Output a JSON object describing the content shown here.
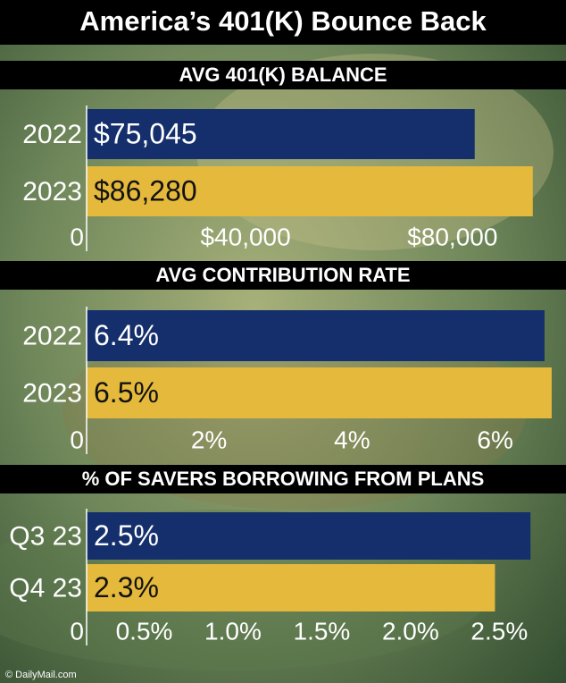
{
  "title": "America’s 401(K) Bounce Back",
  "credit": "© DailyMail.com",
  "chart_data": [
    {
      "type": "bar",
      "orientation": "horizontal",
      "title": "AVG 401(K) BALANCE",
      "categories": [
        "2022",
        "2023"
      ],
      "values": [
        75045,
        86280
      ],
      "value_labels": [
        "$75,045",
        "$86,280"
      ],
      "colors": [
        "#142f6b",
        "#e5b93c"
      ],
      "xlim": [
        0,
        92700
      ],
      "xticks": [
        0,
        {
          "value": 40000,
          "label": "$40,000"
        },
        {
          "value": 80000,
          "label": "$80,000"
        }
      ]
    },
    {
      "type": "bar",
      "orientation": "horizontal",
      "title": "AVG CONTRIBUTION RATE",
      "categories": [
        "2022",
        "2023"
      ],
      "values": [
        6.4,
        6.5
      ],
      "value_labels": [
        "6.4%",
        "6.5%"
      ],
      "colors": [
        "#142f6b",
        "#e5b93c"
      ],
      "xlim": [
        0,
        6.7
      ],
      "xticks": [
        0,
        {
          "value": 2,
          "label": "2%"
        },
        {
          "value": 4,
          "label": "4%"
        },
        {
          "value": 6,
          "label": "6%"
        }
      ]
    },
    {
      "type": "bar",
      "orientation": "horizontal",
      "title": "% OF SAVERS BORROWING FROM PLANS",
      "categories": [
        "Q3 23",
        "Q4 23"
      ],
      "values": [
        2.5,
        2.3
      ],
      "value_labels": [
        "2.5%",
        "2.3%"
      ],
      "colors": [
        "#142f6b",
        "#e5b93c"
      ],
      "xlim": [
        0,
        2.7
      ],
      "xticks": [
        0,
        {
          "value": 0.5,
          "label": "0.5%"
        },
        {
          "value": 1.0,
          "label": "1.0%"
        },
        {
          "value": 1.5,
          "label": "1.5%"
        },
        {
          "value": 2.0,
          "label": "2.0%"
        },
        {
          "value": 2.5,
          "label": "2.5%"
        }
      ]
    }
  ]
}
